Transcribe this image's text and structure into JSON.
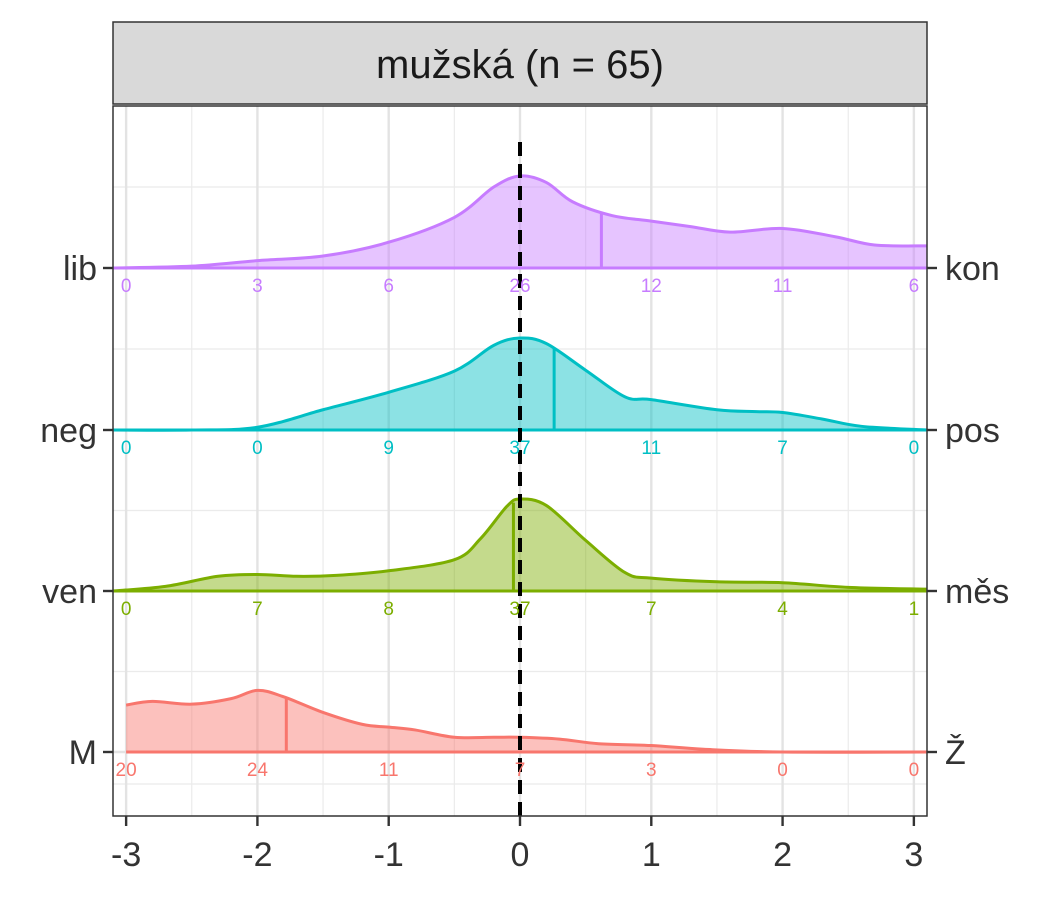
{
  "chart_data": {
    "type": "ridgeline",
    "title": "mužská (n = 65)",
    "xlim": [
      -3.1,
      3.1
    ],
    "x_ticks": [
      -3,
      -2,
      -1,
      0,
      1,
      2,
      3
    ],
    "x_tick_labels": [
      "-3",
      "-2",
      "-1",
      "0",
      "1",
      "2",
      "3"
    ],
    "reference_line_x": 0,
    "grid": true,
    "rows": [
      {
        "left_label": "lib",
        "right_label": "kon",
        "color": "#C77CFF",
        "mean": 0.62,
        "count_positions": [
          -3,
          -2,
          -1,
          0,
          1,
          2,
          3
        ],
        "counts": [
          "0",
          "3",
          "6",
          "26",
          "12",
          "11",
          "6"
        ],
        "density": [
          [
            -3.1,
            0.0
          ],
          [
            -2.5,
            0.02
          ],
          [
            -2.0,
            0.08
          ],
          [
            -1.5,
            0.13
          ],
          [
            -1.0,
            0.28
          ],
          [
            -0.5,
            0.55
          ],
          [
            -0.2,
            0.88
          ],
          [
            0.0,
            1.0
          ],
          [
            0.2,
            0.93
          ],
          [
            0.4,
            0.72
          ],
          [
            0.7,
            0.57
          ],
          [
            1.0,
            0.51
          ],
          [
            1.3,
            0.45
          ],
          [
            1.6,
            0.39
          ],
          [
            2.0,
            0.43
          ],
          [
            2.4,
            0.34
          ],
          [
            2.7,
            0.25
          ],
          [
            3.1,
            0.24
          ]
        ]
      },
      {
        "left_label": "neg",
        "right_label": "pos",
        "color": "#00BFC4",
        "mean": 0.26,
        "count_positions": [
          -3,
          -2,
          -1,
          0,
          1,
          2,
          3
        ],
        "counts": [
          "0",
          "0",
          "9",
          "37",
          "11",
          "7",
          "0"
        ],
        "density": [
          [
            -3.1,
            0.0
          ],
          [
            -2.5,
            0.0
          ],
          [
            -2.0,
            0.03
          ],
          [
            -1.5,
            0.22
          ],
          [
            -1.0,
            0.41
          ],
          [
            -0.5,
            0.64
          ],
          [
            -0.2,
            0.92
          ],
          [
            0.0,
            1.0
          ],
          [
            0.2,
            0.94
          ],
          [
            0.5,
            0.65
          ],
          [
            0.8,
            0.36
          ],
          [
            1.0,
            0.33
          ],
          [
            1.5,
            0.22
          ],
          [
            1.8,
            0.2
          ],
          [
            2.0,
            0.19
          ],
          [
            2.3,
            0.12
          ],
          [
            2.6,
            0.04
          ],
          [
            3.1,
            0.0
          ]
        ]
      },
      {
        "left_label": "ven",
        "right_label": "měs",
        "color": "#7CAE00",
        "mean": -0.05,
        "count_positions": [
          -3,
          -2,
          -1,
          0,
          1,
          2,
          3
        ],
        "counts": [
          "0",
          "7",
          "8",
          "37",
          "7",
          "4",
          "1"
        ],
        "density": [
          [
            -3.1,
            0.0
          ],
          [
            -2.7,
            0.05
          ],
          [
            -2.3,
            0.16
          ],
          [
            -2.0,
            0.18
          ],
          [
            -1.7,
            0.16
          ],
          [
            -1.4,
            0.17
          ],
          [
            -1.0,
            0.22
          ],
          [
            -0.5,
            0.34
          ],
          [
            -0.3,
            0.57
          ],
          [
            -0.1,
            0.92
          ],
          [
            0.0,
            1.0
          ],
          [
            0.2,
            0.93
          ],
          [
            0.5,
            0.55
          ],
          [
            0.8,
            0.2
          ],
          [
            1.0,
            0.14
          ],
          [
            1.5,
            0.1
          ],
          [
            2.0,
            0.09
          ],
          [
            2.5,
            0.04
          ],
          [
            3.1,
            0.02
          ]
        ]
      },
      {
        "left_label": "M",
        "right_label": "Ž",
        "color": "#F8766D",
        "mean": -1.78,
        "count_positions": [
          -3,
          -2,
          -1,
          0,
          1,
          2,
          3
        ],
        "counts": [
          "20",
          "24",
          "11",
          "7",
          "3",
          "0",
          "0"
        ],
        "density": [
          [
            -3.0,
            0.51
          ],
          [
            -2.8,
            0.55
          ],
          [
            -2.5,
            0.52
          ],
          [
            -2.2,
            0.58
          ],
          [
            -2.0,
            0.67
          ],
          [
            -1.8,
            0.6
          ],
          [
            -1.5,
            0.43
          ],
          [
            -1.2,
            0.3
          ],
          [
            -1.0,
            0.27
          ],
          [
            -0.8,
            0.24
          ],
          [
            -0.5,
            0.16
          ],
          [
            -0.2,
            0.16
          ],
          [
            0.0,
            0.16
          ],
          [
            0.3,
            0.14
          ],
          [
            0.6,
            0.09
          ],
          [
            1.0,
            0.07
          ],
          [
            1.4,
            0.03
          ],
          [
            2.0,
            0.0
          ],
          [
            3.1,
            0.0
          ]
        ]
      }
    ]
  }
}
